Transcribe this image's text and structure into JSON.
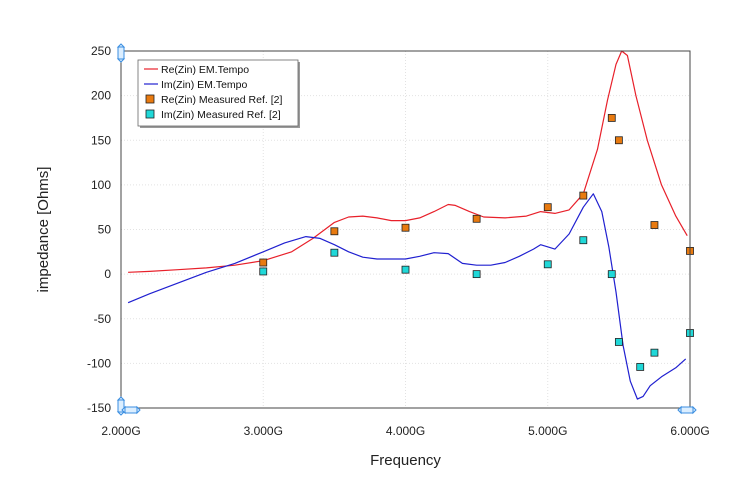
{
  "chart_data": {
    "type": "line",
    "title": "",
    "xlabel": "Frequency",
    "ylabel": "impedance [Ohms]",
    "xlim": [
      2.0,
      6.0
    ],
    "ylim": [
      -150,
      250
    ],
    "x_ticks": [
      {
        "value": 2.0,
        "label": "2.000G"
      },
      {
        "value": 3.0,
        "label": "3.000G"
      },
      {
        "value": 4.0,
        "label": "4.000G"
      },
      {
        "value": 5.0,
        "label": "5.000G"
      },
      {
        "value": 6.0,
        "label": "6.000G"
      }
    ],
    "y_ticks": [
      {
        "value": 250,
        "label": "250"
      },
      {
        "value": 200,
        "label": "200"
      },
      {
        "value": 150,
        "label": "150"
      },
      {
        "value": 100,
        "label": "100"
      },
      {
        "value": 50,
        "label": "50"
      },
      {
        "value": 0,
        "label": "0"
      },
      {
        "value": -50,
        "label": "-50"
      },
      {
        "value": -100,
        "label": "-100"
      },
      {
        "value": -150,
        "label": "-150"
      }
    ],
    "grid": true,
    "legend_position": "top-left",
    "series": [
      {
        "name": "Re(Zin) EM.Tempo",
        "kind": "line",
        "color": "#e8202a",
        "x": [
          2.05,
          2.2,
          2.4,
          2.6,
          2.8,
          3.0,
          3.2,
          3.35,
          3.5,
          3.6,
          3.7,
          3.8,
          3.9,
          4.0,
          4.1,
          4.2,
          4.3,
          4.35,
          4.45,
          4.55,
          4.7,
          4.85,
          4.95,
          5.05,
          5.15,
          5.25,
          5.35,
          5.42,
          5.48,
          5.52,
          5.56,
          5.62,
          5.7,
          5.8,
          5.9,
          5.98
        ],
        "y": [
          2,
          3,
          5,
          7,
          10,
          15,
          25,
          40,
          58,
          64,
          65,
          63,
          60,
          60,
          63,
          70,
          78,
          77,
          70,
          64,
          63,
          65,
          70,
          68,
          72,
          90,
          140,
          195,
          235,
          250,
          245,
          200,
          150,
          100,
          65,
          43
        ]
      },
      {
        "name": "Im(Zin) EM.Tempo",
        "kind": "line",
        "color": "#2020d0",
        "x": [
          2.05,
          2.2,
          2.4,
          2.6,
          2.8,
          3.0,
          3.15,
          3.3,
          3.4,
          3.5,
          3.6,
          3.7,
          3.8,
          3.9,
          4.0,
          4.1,
          4.2,
          4.3,
          4.4,
          4.5,
          4.6,
          4.7,
          4.8,
          4.9,
          4.95,
          5.05,
          5.15,
          5.25,
          5.32,
          5.38,
          5.43,
          5.48,
          5.53,
          5.58,
          5.63,
          5.67,
          5.72,
          5.8,
          5.9,
          5.97
        ],
        "y": [
          -32,
          -22,
          -10,
          2,
          12,
          25,
          35,
          42,
          40,
          33,
          25,
          19,
          17,
          17,
          17,
          20,
          24,
          23,
          12,
          10,
          10,
          13,
          20,
          28,
          33,
          28,
          45,
          75,
          90,
          70,
          30,
          -20,
          -80,
          -120,
          -140,
          -137,
          -125,
          -115,
          -105,
          -95
        ]
      },
      {
        "name": "Re(Zin) Measured Ref. [2]",
        "kind": "marker",
        "color": "#e87a10",
        "x": [
          3.0,
          3.5,
          4.0,
          4.5,
          5.0,
          5.25,
          5.45,
          5.5,
          5.75,
          6.0
        ],
        "y": [
          13,
          48,
          52,
          62,
          75,
          88,
          175,
          150,
          55,
          26
        ]
      },
      {
        "name": "Im(Zin) Measured Ref. [2]",
        "kind": "marker",
        "color": "#20d8d8",
        "x": [
          3.0,
          3.5,
          4.0,
          4.5,
          5.0,
          5.25,
          5.45,
          5.5,
          5.65,
          5.75,
          6.0
        ],
        "y": [
          3,
          24,
          5,
          0,
          11,
          38,
          0,
          -76,
          -104,
          -88,
          -66
        ]
      }
    ]
  }
}
